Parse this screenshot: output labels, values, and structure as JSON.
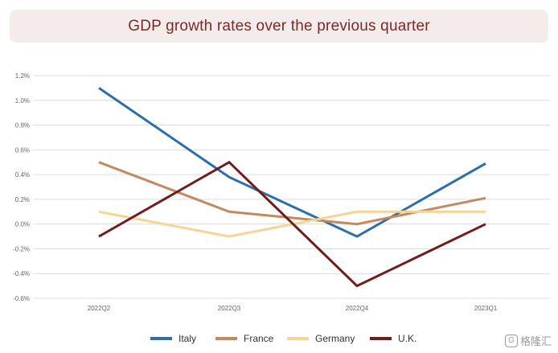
{
  "chart_data": {
    "type": "line",
    "title": "GDP growth rates over the previous quarter",
    "xlabel": "",
    "ylabel": "",
    "categories": [
      "2022Q2",
      "2022Q3",
      "2022Q4",
      "2023Q1"
    ],
    "ylim": [
      -0.6,
      1.2
    ],
    "yticks": [
      1.2,
      1.0,
      0.8,
      0.6,
      0.4,
      0.2,
      0.0,
      -0.2,
      -0.4,
      -0.6
    ],
    "ytick_labels": [
      "1.2%",
      "1.0%",
      "0.8%",
      "0.6%",
      "0.4%",
      "0.2%",
      "0.0%",
      "-0.2%",
      "-0.4%",
      "-0.6%"
    ],
    "grid": true,
    "legend_position": "bottom",
    "series": [
      {
        "name": "Italy",
        "color": "#2e6fa8",
        "values": [
          1.1,
          0.38,
          -0.1,
          0.49
        ]
      },
      {
        "name": "France",
        "color": "#c28a5e",
        "values": [
          0.5,
          0.1,
          0.0,
          0.21
        ]
      },
      {
        "name": "Germany",
        "color": "#f6d494",
        "values": [
          0.1,
          -0.1,
          0.1,
          0.1
        ]
      },
      {
        "name": "U.K.",
        "color": "#701d1d",
        "values": [
          -0.1,
          0.5,
          -0.5,
          0.0
        ]
      }
    ]
  },
  "watermark": {
    "text": "格隆汇"
  }
}
